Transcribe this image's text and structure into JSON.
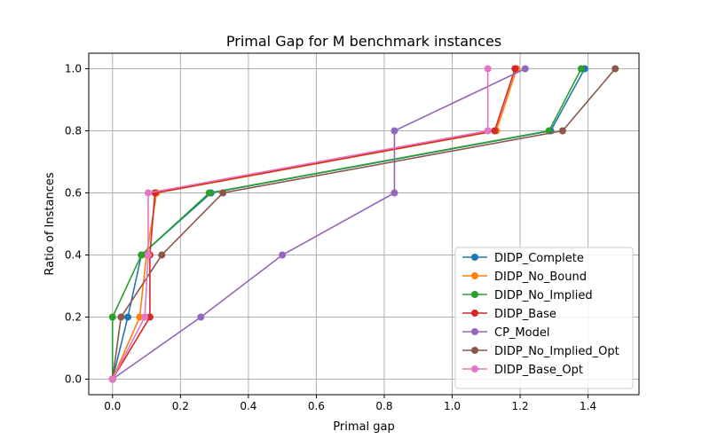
{
  "chart_data": {
    "type": "line",
    "title": "Primal Gap for M benchmark instances",
    "xlabel": "Primal gap",
    "ylabel": "Ratio of Instances",
    "xlim": [
      -0.07,
      1.55
    ],
    "ylim": [
      -0.05,
      1.05
    ],
    "xticks": [
      0.0,
      0.2,
      0.4,
      0.6,
      0.8,
      1.0,
      1.2,
      1.4
    ],
    "yticks": [
      0.0,
      0.2,
      0.4,
      0.6,
      0.8,
      1.0
    ],
    "grid": true,
    "legend_position": "lower right",
    "series": [
      {
        "name": "DIDP_Complete",
        "color": "#1f77b4",
        "x": [
          0.0,
          0.045,
          0.085,
          0.29,
          1.29,
          1.39
        ],
        "y": [
          0.0,
          0.2,
          0.4,
          0.6,
          0.8,
          1.0
        ]
      },
      {
        "name": "DIDP_No_Bound",
        "color": "#ff7f0e",
        "x": [
          0.0,
          0.08,
          0.1,
          0.13,
          1.13,
          1.19
        ],
        "y": [
          0.0,
          0.2,
          0.4,
          0.6,
          0.8,
          1.0
        ]
      },
      {
        "name": "DIDP_No_Implied",
        "color": "#2ca02c",
        "x": [
          0.0,
          0.0,
          0.085,
          0.285,
          1.285,
          1.38
        ],
        "y": [
          0.0,
          0.2,
          0.4,
          0.6,
          0.8,
          1.0
        ]
      },
      {
        "name": "DIDP_Base",
        "color": "#d62728",
        "x": [
          0.0,
          0.11,
          0.11,
          0.125,
          1.125,
          1.185
        ],
        "y": [
          0.0,
          0.2,
          0.4,
          0.6,
          0.8,
          1.0
        ]
      },
      {
        "name": "CP_Model",
        "color": "#9467bd",
        "x": [
          0.0,
          0.26,
          0.5,
          0.83,
          0.83,
          1.215
        ],
        "y": [
          0.0,
          0.2,
          0.4,
          0.6,
          0.8,
          1.0
        ]
      },
      {
        "name": "DIDP_No_Implied_Opt",
        "color": "#8c564b",
        "x": [
          0.0,
          0.025,
          0.145,
          0.325,
          1.325,
          1.48
        ],
        "y": [
          0.0,
          0.2,
          0.4,
          0.6,
          0.8,
          1.0
        ]
      },
      {
        "name": "DIDP_Base_Opt",
        "color": "#e377c2",
        "x": [
          0.0,
          0.095,
          0.105,
          0.105,
          1.105,
          1.105
        ],
        "y": [
          0.0,
          0.2,
          0.4,
          0.6,
          0.8,
          1.0
        ]
      }
    ]
  }
}
